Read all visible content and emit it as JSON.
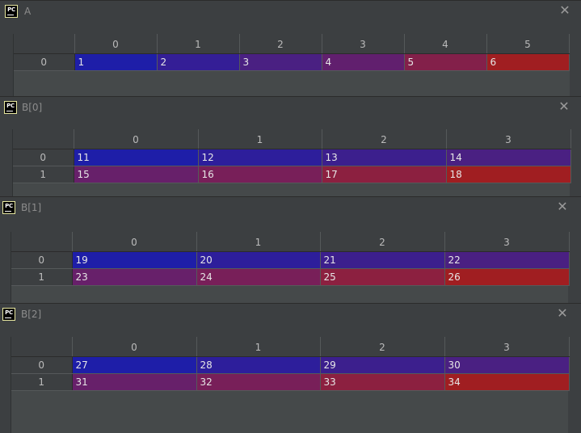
{
  "windows": [
    {
      "id": "A",
      "title": "A",
      "columns": [
        "0",
        "1",
        "2",
        "3",
        "4",
        "5"
      ],
      "rows": [
        {
          "index": "0",
          "cells": [
            "1",
            "2",
            "3",
            "4",
            "5",
            "6"
          ],
          "colors": [
            "#1e1ea8",
            "#341e96",
            "#4a2082",
            "#611f6e",
            "#83204a",
            "#a01e21"
          ]
        }
      ]
    },
    {
      "id": "B0",
      "title": "B[0]",
      "columns": [
        "0",
        "1",
        "2",
        "3"
      ],
      "rows": [
        {
          "index": "0",
          "cells": [
            "11",
            "12",
            "13",
            "14"
          ],
          "colors": [
            "#1e1ea8",
            "#2d1e9b",
            "#3c1f8d",
            "#4a2082"
          ]
        },
        {
          "index": "1",
          "cells": [
            "15",
            "16",
            "17",
            "18"
          ],
          "colors": [
            "#67206a",
            "#781f59",
            "#8c2040",
            "#a01e21"
          ]
        }
      ]
    },
    {
      "id": "B1",
      "title": "B[1]",
      "columns": [
        "0",
        "1",
        "2",
        "3"
      ],
      "rows": [
        {
          "index": "0",
          "cells": [
            "19",
            "20",
            "21",
            "22"
          ],
          "colors": [
            "#1e1ea8",
            "#2d1e9b",
            "#3c1f8d",
            "#4a2082"
          ]
        },
        {
          "index": "1",
          "cells": [
            "23",
            "24",
            "25",
            "26"
          ],
          "colors": [
            "#67206a",
            "#781f59",
            "#8c2040",
            "#a01e21"
          ]
        }
      ]
    },
    {
      "id": "B2",
      "title": "B[2]",
      "columns": [
        "0",
        "1",
        "2",
        "3"
      ],
      "rows": [
        {
          "index": "0",
          "cells": [
            "27",
            "28",
            "29",
            "30"
          ],
          "colors": [
            "#1e1ea8",
            "#2d1e9b",
            "#3c1f8d",
            "#4a2082"
          ]
        },
        {
          "index": "1",
          "cells": [
            "31",
            "32",
            "33",
            "34"
          ],
          "colors": [
            "#67206a",
            "#781f59",
            "#8c2040",
            "#a01e21"
          ]
        }
      ]
    }
  ],
  "icons": {
    "app": "pycharm-icon",
    "close": "close-icon"
  },
  "app_icon_text": "PC",
  "close_glyph": "✕"
}
